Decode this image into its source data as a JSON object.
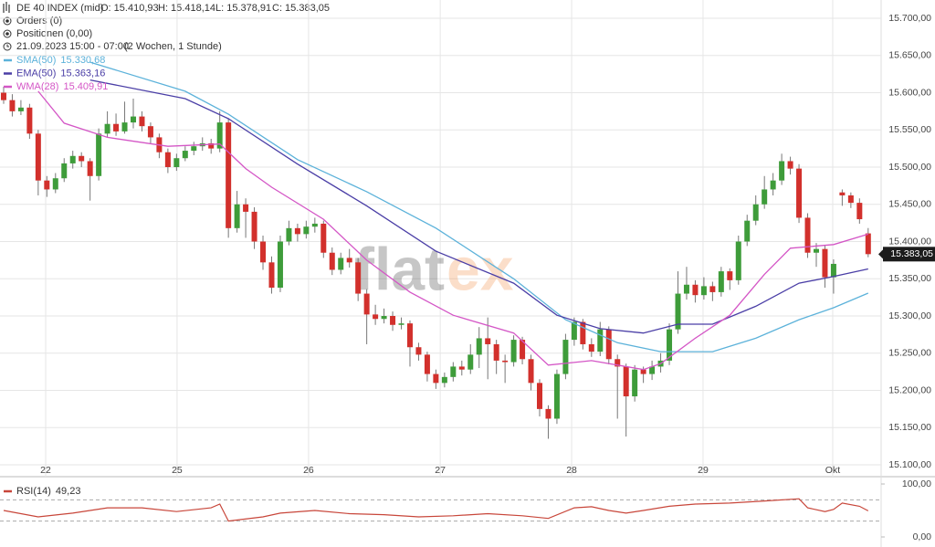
{
  "header": {
    "instrument": "DE 40 INDEX (mid)",
    "open": "O: 15.410,93",
    "high": "H: 15.418,14",
    "low": "L: 15.378,91",
    "close": "C: 15.383,05",
    "orders": "Orders (0)",
    "positions": "Positionen (0,00)",
    "period": "21.09.2023 15:00 - 07:00",
    "range": "(2 Wochen, 1 Stunde)"
  },
  "watermark": [
    "flat",
    "ex"
  ],
  "chart_data": [
    {
      "type": "candlestick",
      "up_color": "#3e9c3a",
      "down_color": "#d2302c",
      "grid": true,
      "xlim": [
        -0.42,
        101.5
      ],
      "xticks": [
        {
          "value": 4.86,
          "label": "22"
        },
        {
          "value": 20.06,
          "label": "25"
        },
        {
          "value": 35.27,
          "label": "26"
        },
        {
          "value": 50.5,
          "label": "27"
        },
        {
          "value": 65.7,
          "label": "28"
        },
        {
          "value": 80.9,
          "label": "29"
        },
        {
          "value": 95.9,
          "label": "Okt"
        }
      ],
      "ylim": [
        15100,
        15700
      ],
      "yticks": [
        {
          "value": 15100,
          "label": "15.100,00"
        },
        {
          "value": 15150,
          "label": "15.150,00"
        },
        {
          "value": 15200,
          "label": "15.200,00"
        },
        {
          "value": 15250,
          "label": "15.250,00"
        },
        {
          "value": 15300,
          "label": "15.300,00"
        },
        {
          "value": 15350,
          "label": "15.350,00"
        },
        {
          "value": 15400,
          "label": "15.400,00"
        },
        {
          "value": 15450,
          "label": "15.450,00"
        },
        {
          "value": 15500,
          "label": "15.500,00"
        },
        {
          "value": 15550,
          "label": "15.550,00"
        },
        {
          "value": 15600,
          "label": "15.600,00"
        },
        {
          "value": 15650,
          "label": "15.650,00"
        },
        {
          "value": 15700,
          "label": "15.700,00"
        }
      ],
      "last_price": {
        "value": 15383.05,
        "label": "15.383,05"
      },
      "open": [
        15600,
        15590,
        15575,
        15580,
        15545,
        15482,
        15470,
        15485,
        15505,
        15515,
        15508,
        15488,
        15545,
        15558,
        15548,
        15560,
        15568,
        15555,
        15540,
        15520,
        15500,
        15512,
        15522,
        15528,
        15532,
        15525,
        15560,
        15418,
        15450,
        15440,
        15400,
        15372,
        15338,
        15400,
        15418,
        15410,
        15420,
        15424,
        15385,
        15362,
        15378,
        15372,
        15330,
        15302,
        15296,
        15300,
        15288,
        15290,
        15258,
        15248,
        15222,
        15210,
        15218,
        15232,
        15228,
        15248,
        15270,
        15262,
        15240,
        15238,
        15268,
        15242,
        15210,
        15175,
        15162,
        15222,
        15268,
        15292,
        15262,
        15252,
        15282,
        15242,
        15232,
        15192,
        15228,
        15222,
        15232,
        15240,
        15282,
        15330,
        15342,
        15328,
        15340,
        15332,
        15360,
        15348,
        15400,
        15428,
        15450,
        15470,
        15482,
        15508,
        15498,
        15432,
        15385,
        15390,
        15352,
        15466,
        15462,
        15452,
        15410.93
      ],
      "high": [
        15608,
        15598,
        15590,
        15585,
        15550,
        15488,
        15492,
        15512,
        15522,
        15520,
        15512,
        15552,
        15575,
        15572,
        15588,
        15592,
        15575,
        15560,
        15545,
        15525,
        15518,
        15528,
        15534,
        15540,
        15538,
        15575,
        15565,
        15468,
        15458,
        15446,
        15408,
        15380,
        15408,
        15428,
        15424,
        15428,
        15432,
        15428,
        15392,
        15385,
        15390,
        15378,
        15336,
        15315,
        15310,
        15306,
        15298,
        15294,
        15264,
        15252,
        15228,
        15224,
        15238,
        15240,
        15262,
        15285,
        15298,
        15268,
        15248,
        15274,
        15272,
        15248,
        15215,
        15180,
        15228,
        15276,
        15298,
        15296,
        15270,
        15292,
        15286,
        15248,
        15236,
        15234,
        15232,
        15240,
        15250,
        15290,
        15360,
        15366,
        15348,
        15352,
        15346,
        15366,
        15364,
        15408,
        15436,
        15462,
        15488,
        15492,
        15518,
        15514,
        15504,
        15438,
        15398,
        15395,
        15376,
        15470,
        15466,
        15458,
        15418.14
      ],
      "low": [
        15585,
        15568,
        15570,
        15538,
        15462,
        15460,
        15465,
        15480,
        15498,
        15500,
        15455,
        15482,
        15540,
        15542,
        15545,
        15552,
        15548,
        15532,
        15512,
        15492,
        15495,
        15508,
        15516,
        15522,
        15518,
        15520,
        15405,
        15412,
        15405,
        15390,
        15362,
        15330,
        15332,
        15395,
        15400,
        15404,
        15412,
        15378,
        15355,
        15356,
        15365,
        15320,
        15262,
        15288,
        15290,
        15280,
        15282,
        15232,
        15240,
        15212,
        15202,
        15204,
        15212,
        15220,
        15222,
        15230,
        15215,
        15222,
        15210,
        15232,
        15235,
        15200,
        15165,
        15135,
        15155,
        15215,
        15260,
        15255,
        15245,
        15246,
        15235,
        15162,
        15138,
        15185,
        15210,
        15214,
        15224,
        15234,
        15276,
        15322,
        15318,
        15322,
        15320,
        15326,
        15335,
        15342,
        15394,
        15422,
        15444,
        15462,
        15476,
        15490,
        15425,
        15378,
        15366,
        15338,
        15330,
        15448,
        15445,
        15424,
        15378.91
      ],
      "close": [
        15590,
        15575,
        15580,
        15545,
        15482,
        15470,
        15485,
        15505,
        15515,
        15508,
        15488,
        15545,
        15558,
        15548,
        15560,
        15568,
        15555,
        15540,
        15520,
        15500,
        15512,
        15522,
        15528,
        15532,
        15525,
        15560,
        15418,
        15450,
        15440,
        15400,
        15372,
        15338,
        15400,
        15418,
        15410,
        15420,
        15424,
        15385,
        15362,
        15378,
        15372,
        15330,
        15302,
        15296,
        15300,
        15288,
        15290,
        15258,
        15248,
        15222,
        15210,
        15218,
        15232,
        15228,
        15248,
        15270,
        15262,
        15240,
        15238,
        15268,
        15242,
        15210,
        15175,
        15162,
        15222,
        15268,
        15292,
        15262,
        15252,
        15282,
        15242,
        15232,
        15192,
        15228,
        15222,
        15232,
        15240,
        15282,
        15330,
        15342,
        15328,
        15340,
        15332,
        15360,
        15348,
        15400,
        15428,
        15450,
        15470,
        15482,
        15508,
        15498,
        15432,
        15385,
        15390,
        15352,
        15370,
        15462,
        15452,
        15430,
        15383.05
      ],
      "overlays": [
        {
          "name": "SMA(50)",
          "value_label": "15.330,68",
          "color": "#5cb2da",
          "x": [
            10,
            21,
            26,
            34,
            42,
            50,
            59,
            65,
            71,
            76,
            82,
            87,
            92,
            96,
            100
          ],
          "values": [
            15641,
            15602,
            15571,
            15510,
            15467,
            15418,
            15350,
            15295,
            15264,
            15252,
            15252,
            15270,
            15295,
            15311,
            15330.68
          ]
        },
        {
          "name": "EMA(50)",
          "value_label": "15.363,16",
          "color": "#4a3ea6",
          "x": [
            10,
            21,
            26,
            34,
            42,
            50,
            59,
            64,
            69,
            74,
            78,
            82,
            87,
            92,
            96,
            100
          ],
          "values": [
            15617,
            15592,
            15565,
            15504,
            15448,
            15387,
            15344,
            15301,
            15283,
            15277,
            15289,
            15289,
            15313,
            15344,
            15353,
            15363.16
          ]
        },
        {
          "name": "WMA(28)",
          "value_label": "15.409,91",
          "color": "#d456c6",
          "x": [
            4,
            7,
            12,
            19,
            25,
            28,
            31,
            37,
            42,
            47,
            52,
            59,
            63,
            68,
            74,
            76,
            80,
            84,
            88,
            91,
            96,
            100
          ],
          "values": [
            15602,
            15559,
            15540,
            15528,
            15531,
            15498,
            15473,
            15430,
            15375,
            15332,
            15301,
            15277,
            15234,
            15240,
            15228,
            15236,
            15270,
            15301,
            15356,
            15391,
            15396,
            15409.91
          ]
        }
      ]
    },
    {
      "type": "line",
      "xlim": [
        -0.42,
        101.5
      ],
      "ylim": [
        0,
        100
      ],
      "yticks": [
        {
          "value": 0,
          "label": "0,00"
        },
        {
          "value": 100,
          "label": "100,00"
        }
      ],
      "reference_lines": [
        70,
        30
      ],
      "series": [
        {
          "name": "RSI(14)",
          "value_label": "49,23",
          "color": "#c8463a",
          "x": [
            0,
            4,
            8,
            12,
            16,
            20,
            24,
            25,
            26,
            30,
            32,
            36,
            40,
            44,
            48,
            52,
            56,
            60,
            63,
            66,
            68,
            70,
            72,
            74,
            77,
            80,
            84,
            88,
            92,
            93,
            95,
            96,
            97,
            99,
            100
          ],
          "values": [
            50,
            38,
            45,
            55,
            55,
            48,
            55,
            62,
            30,
            38,
            45,
            50,
            44,
            42,
            38,
            40,
            44,
            40,
            35,
            55,
            57,
            50,
            45,
            50,
            58,
            62,
            64,
            68,
            72,
            55,
            48,
            52,
            64,
            58,
            49.23
          ]
        }
      ]
    }
  ]
}
